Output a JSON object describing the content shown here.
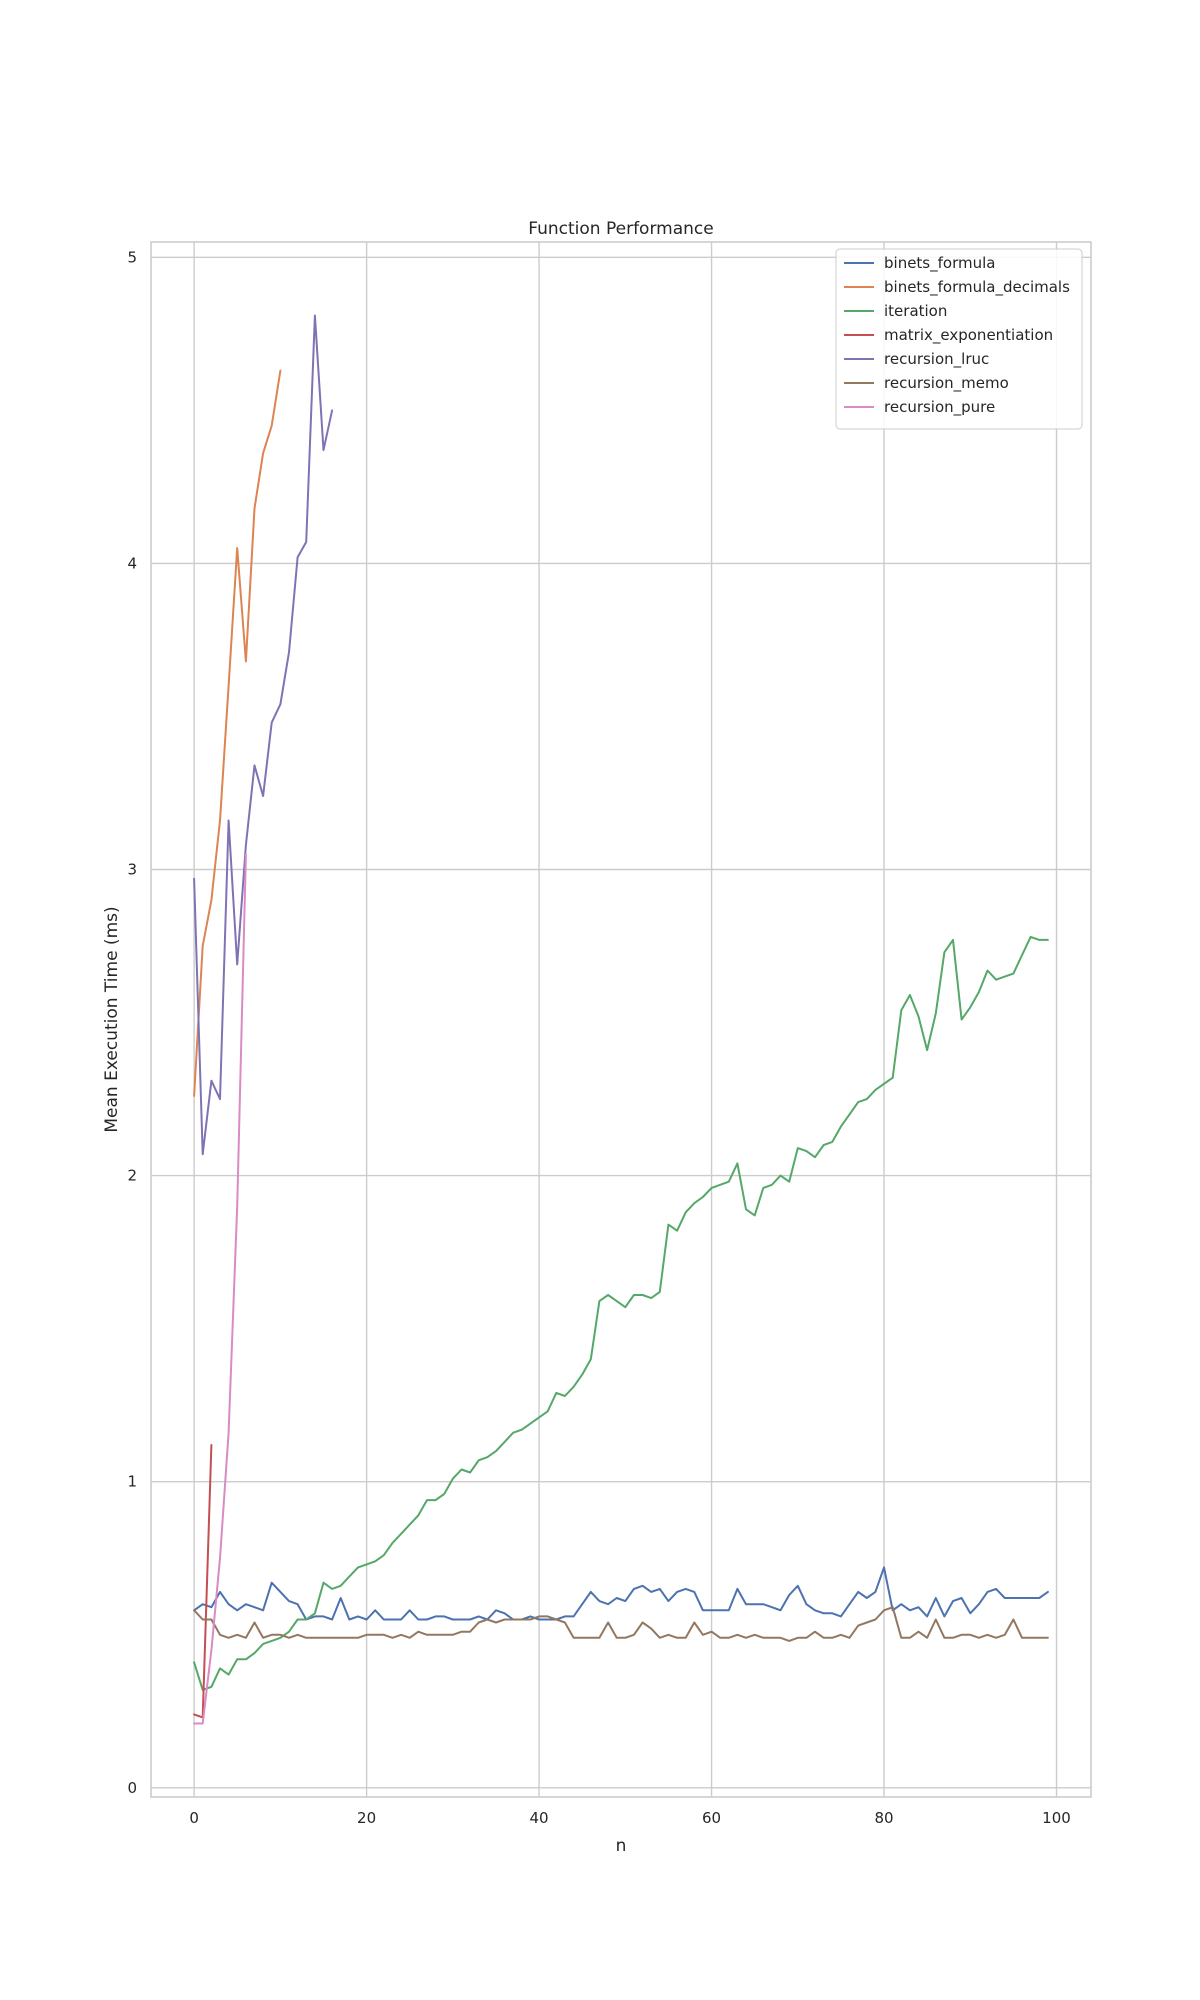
{
  "chart_data": {
    "type": "line",
    "title": "Function Performance",
    "xlabel": "n",
    "ylabel": "Mean Execution Time (ms)",
    "xlim": [
      -5,
      104
    ],
    "ylim": [
      -0.03,
      5.05
    ],
    "xticks": [
      0,
      20,
      40,
      60,
      80,
      100
    ],
    "yticks": [
      0,
      1,
      2,
      3,
      4,
      5
    ],
    "grid": true,
    "legend_position": "top-right",
    "series": [
      {
        "name": "binets_formula",
        "color": "#4c72b0",
        "x": [
          0,
          1,
          2,
          3,
          4,
          5,
          6,
          7,
          8,
          9,
          10,
          11,
          12,
          13,
          14,
          15,
          16,
          17,
          18,
          19,
          20,
          21,
          22,
          23,
          24,
          25,
          26,
          27,
          28,
          29,
          30,
          31,
          32,
          33,
          34,
          35,
          36,
          37,
          38,
          39,
          40,
          41,
          42,
          43,
          44,
          45,
          46,
          47,
          48,
          49,
          50,
          51,
          52,
          53,
          54,
          55,
          56,
          57,
          58,
          59,
          60,
          61,
          62,
          63,
          64,
          65,
          66,
          67,
          68,
          69,
          70,
          71,
          72,
          73,
          74,
          75,
          76,
          77,
          78,
          79,
          80,
          81,
          82,
          83,
          84,
          85,
          86,
          87,
          88,
          89,
          90,
          91,
          92,
          93,
          94,
          95,
          96,
          97,
          98,
          99
        ],
        "values": [
          0.58,
          0.6,
          0.59,
          0.64,
          0.6,
          0.58,
          0.6,
          0.59,
          0.58,
          0.67,
          0.64,
          0.61,
          0.6,
          0.55,
          0.56,
          0.56,
          0.55,
          0.62,
          0.55,
          0.56,
          0.55,
          0.58,
          0.55,
          0.55,
          0.55,
          0.58,
          0.55,
          0.55,
          0.56,
          0.56,
          0.55,
          0.55,
          0.55,
          0.56,
          0.55,
          0.58,
          0.57,
          0.55,
          0.55,
          0.56,
          0.55,
          0.55,
          0.55,
          0.56,
          0.56,
          0.6,
          0.64,
          0.61,
          0.6,
          0.62,
          0.61,
          0.65,
          0.66,
          0.64,
          0.65,
          0.61,
          0.64,
          0.65,
          0.64,
          0.58,
          0.58,
          0.58,
          0.58,
          0.65,
          0.6,
          0.6,
          0.6,
          0.59,
          0.58,
          0.63,
          0.66,
          0.6,
          0.58,
          0.57,
          0.57,
          0.56,
          0.6,
          0.64,
          0.62,
          0.64,
          0.72,
          0.58,
          0.6,
          0.58,
          0.59,
          0.56,
          0.62,
          0.56,
          0.61,
          0.62,
          0.57,
          0.6,
          0.64,
          0.65,
          0.62,
          0.62,
          0.62,
          0.62,
          0.62,
          0.64
        ]
      },
      {
        "name": "binets_formula_decimals",
        "color": "#dd8452",
        "x": [
          0,
          1,
          2,
          3,
          4,
          5,
          6,
          7,
          8,
          9,
          10
        ],
        "values": [
          2.26,
          2.75,
          2.9,
          3.16,
          3.6,
          4.05,
          3.68,
          4.18,
          4.36,
          4.45,
          4.63
        ]
      },
      {
        "name": "iteration",
        "color": "#55a868",
        "x": [
          0,
          1,
          2,
          3,
          4,
          5,
          6,
          7,
          8,
          9,
          10,
          11,
          12,
          13,
          14,
          15,
          16,
          17,
          18,
          19,
          20,
          21,
          22,
          23,
          24,
          25,
          26,
          27,
          28,
          29,
          30,
          31,
          32,
          33,
          34,
          35,
          36,
          37,
          38,
          39,
          40,
          41,
          42,
          43,
          44,
          45,
          46,
          47,
          48,
          49,
          50,
          51,
          52,
          53,
          54,
          55,
          56,
          57,
          58,
          59,
          60,
          61,
          62,
          63,
          64,
          65,
          66,
          67,
          68,
          69,
          70,
          71,
          72,
          73,
          74,
          75,
          76,
          77,
          78,
          79,
          80,
          81,
          82,
          83,
          84,
          85,
          86,
          87,
          88,
          89,
          90,
          91,
          92,
          93,
          94,
          95,
          96,
          97,
          98,
          99
        ],
        "values": [
          0.41,
          0.32,
          0.33,
          0.39,
          0.37,
          0.42,
          0.42,
          0.44,
          0.47,
          0.48,
          0.49,
          0.51,
          0.55,
          0.55,
          0.57,
          0.67,
          0.65,
          0.66,
          0.69,
          0.72,
          0.73,
          0.74,
          0.76,
          0.8,
          0.83,
          0.86,
          0.89,
          0.94,
          0.94,
          0.96,
          1.01,
          1.04,
          1.03,
          1.07,
          1.08,
          1.1,
          1.13,
          1.16,
          1.17,
          1.19,
          1.21,
          1.23,
          1.29,
          1.28,
          1.31,
          1.35,
          1.4,
          1.59,
          1.61,
          1.59,
          1.57,
          1.61,
          1.61,
          1.6,
          1.62,
          1.84,
          1.82,
          1.88,
          1.91,
          1.93,
          1.96,
          1.97,
          1.98,
          2.04,
          1.89,
          1.87,
          1.96,
          1.97,
          2.0,
          1.98,
          2.09,
          2.08,
          2.06,
          2.1,
          2.11,
          2.16,
          2.2,
          2.24,
          2.25,
          2.28,
          2.3,
          2.32,
          2.54,
          2.59,
          2.52,
          2.41,
          2.53,
          2.73,
          2.77,
          2.51,
          2.55,
          2.6,
          2.67,
          2.64,
          2.65,
          2.66,
          2.72,
          2.78,
          2.77,
          2.77
        ]
      },
      {
        "name": "matrix_exponentiation",
        "color": "#c44e52",
        "x": [
          0,
          1,
          2
        ],
        "values": [
          0.24,
          0.23,
          1.12
        ]
      },
      {
        "name": "recursion_lruc",
        "color": "#8172b3",
        "x": [
          0,
          1,
          2,
          3,
          4,
          5,
          6,
          7,
          8,
          9,
          10,
          11,
          12,
          13,
          14,
          15,
          16
        ],
        "values": [
          2.97,
          2.07,
          2.31,
          2.25,
          3.16,
          2.69,
          3.08,
          3.34,
          3.24,
          3.48,
          3.54,
          3.71,
          4.02,
          4.07,
          4.81,
          4.37,
          4.5
        ]
      },
      {
        "name": "recursion_memo",
        "color": "#937860",
        "x": [
          0,
          1,
          2,
          3,
          4,
          5,
          6,
          7,
          8,
          9,
          10,
          11,
          12,
          13,
          14,
          15,
          16,
          17,
          18,
          19,
          20,
          21,
          22,
          23,
          24,
          25,
          26,
          27,
          28,
          29,
          30,
          31,
          32,
          33,
          34,
          35,
          36,
          37,
          38,
          39,
          40,
          41,
          42,
          43,
          44,
          45,
          46,
          47,
          48,
          49,
          50,
          51,
          52,
          53,
          54,
          55,
          56,
          57,
          58,
          59,
          60,
          61,
          62,
          63,
          64,
          65,
          66,
          67,
          68,
          69,
          70,
          71,
          72,
          73,
          74,
          75,
          76,
          77,
          78,
          79,
          80,
          81,
          82,
          83,
          84,
          85,
          86,
          87,
          88,
          89,
          90,
          91,
          92,
          93,
          94,
          95,
          96,
          97,
          98,
          99
        ],
        "values": [
          0.58,
          0.55,
          0.55,
          0.5,
          0.49,
          0.5,
          0.49,
          0.54,
          0.49,
          0.5,
          0.5,
          0.49,
          0.5,
          0.49,
          0.49,
          0.49,
          0.49,
          0.49,
          0.49,
          0.49,
          0.5,
          0.5,
          0.5,
          0.49,
          0.5,
          0.49,
          0.51,
          0.5,
          0.5,
          0.5,
          0.5,
          0.51,
          0.51,
          0.54,
          0.55,
          0.54,
          0.55,
          0.55,
          0.55,
          0.55,
          0.56,
          0.56,
          0.55,
          0.54,
          0.49,
          0.49,
          0.49,
          0.49,
          0.54,
          0.49,
          0.49,
          0.5,
          0.54,
          0.52,
          0.49,
          0.5,
          0.49,
          0.49,
          0.54,
          0.5,
          0.51,
          0.49,
          0.49,
          0.5,
          0.49,
          0.5,
          0.49,
          0.49,
          0.49,
          0.48,
          0.49,
          0.49,
          0.51,
          0.49,
          0.49,
          0.5,
          0.49,
          0.53,
          0.54,
          0.55,
          0.58,
          0.59,
          0.49,
          0.49,
          0.51,
          0.49,
          0.55,
          0.49,
          0.49,
          0.5,
          0.5,
          0.49,
          0.5,
          0.49,
          0.5,
          0.55,
          0.49,
          0.49,
          0.49,
          0.49
        ]
      },
      {
        "name": "recursion_pure",
        "color": "#da8bc3",
        "x": [
          0,
          1,
          2,
          3,
          4,
          5,
          6
        ],
        "values": [
          0.21,
          0.21,
          0.45,
          0.75,
          1.16,
          1.9,
          3.05
        ]
      }
    ]
  }
}
